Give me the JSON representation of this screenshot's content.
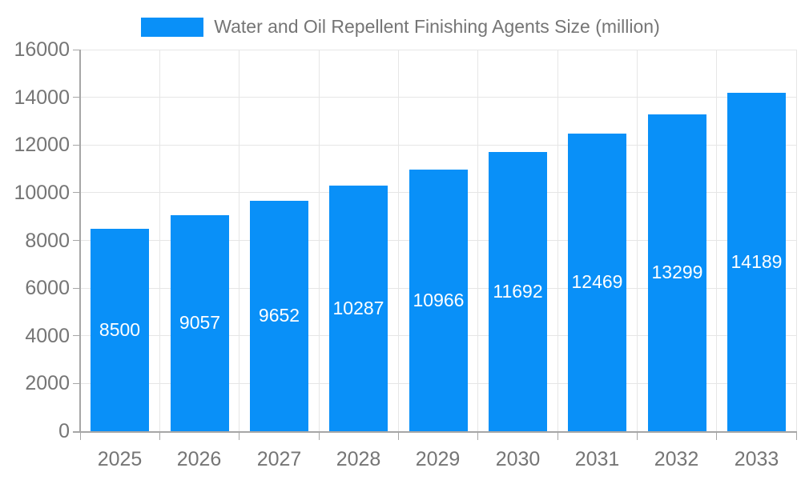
{
  "chart_data": {
    "type": "bar",
    "title": "Water and Oil Repellent Finishing Agents Size (million)",
    "categories": [
      "2025",
      "2026",
      "2027",
      "2028",
      "2029",
      "2030",
      "2031",
      "2032",
      "2033"
    ],
    "values": [
      8500,
      9057,
      9652,
      10287,
      10966,
      11692,
      12469,
      13299,
      14189
    ],
    "series": [
      {
        "name": "Water and Oil Repellent Finishing Agents Size (million)",
        "values": [
          8500,
          9057,
          9652,
          10287,
          10966,
          11692,
          12469,
          13299,
          14189
        ]
      }
    ],
    "xlabel": "",
    "ylabel": "",
    "ylim": [
      0,
      16000
    ],
    "yticks": [
      0,
      2000,
      4000,
      6000,
      8000,
      10000,
      12000,
      14000,
      16000
    ],
    "grid": true,
    "legend_position": "top",
    "value_labels": "inside-center"
  },
  "legend": {
    "label": "Water and Oil Repellent Finishing Agents Size (million)"
  },
  "colors": {
    "bar": "#0990f8",
    "grid": "#e6e6e6",
    "axis": "#a6a6a6",
    "tick_text": "#757575",
    "legend_text": "#757575",
    "value_label_text": "#ffffff",
    "background": "#ffffff"
  }
}
